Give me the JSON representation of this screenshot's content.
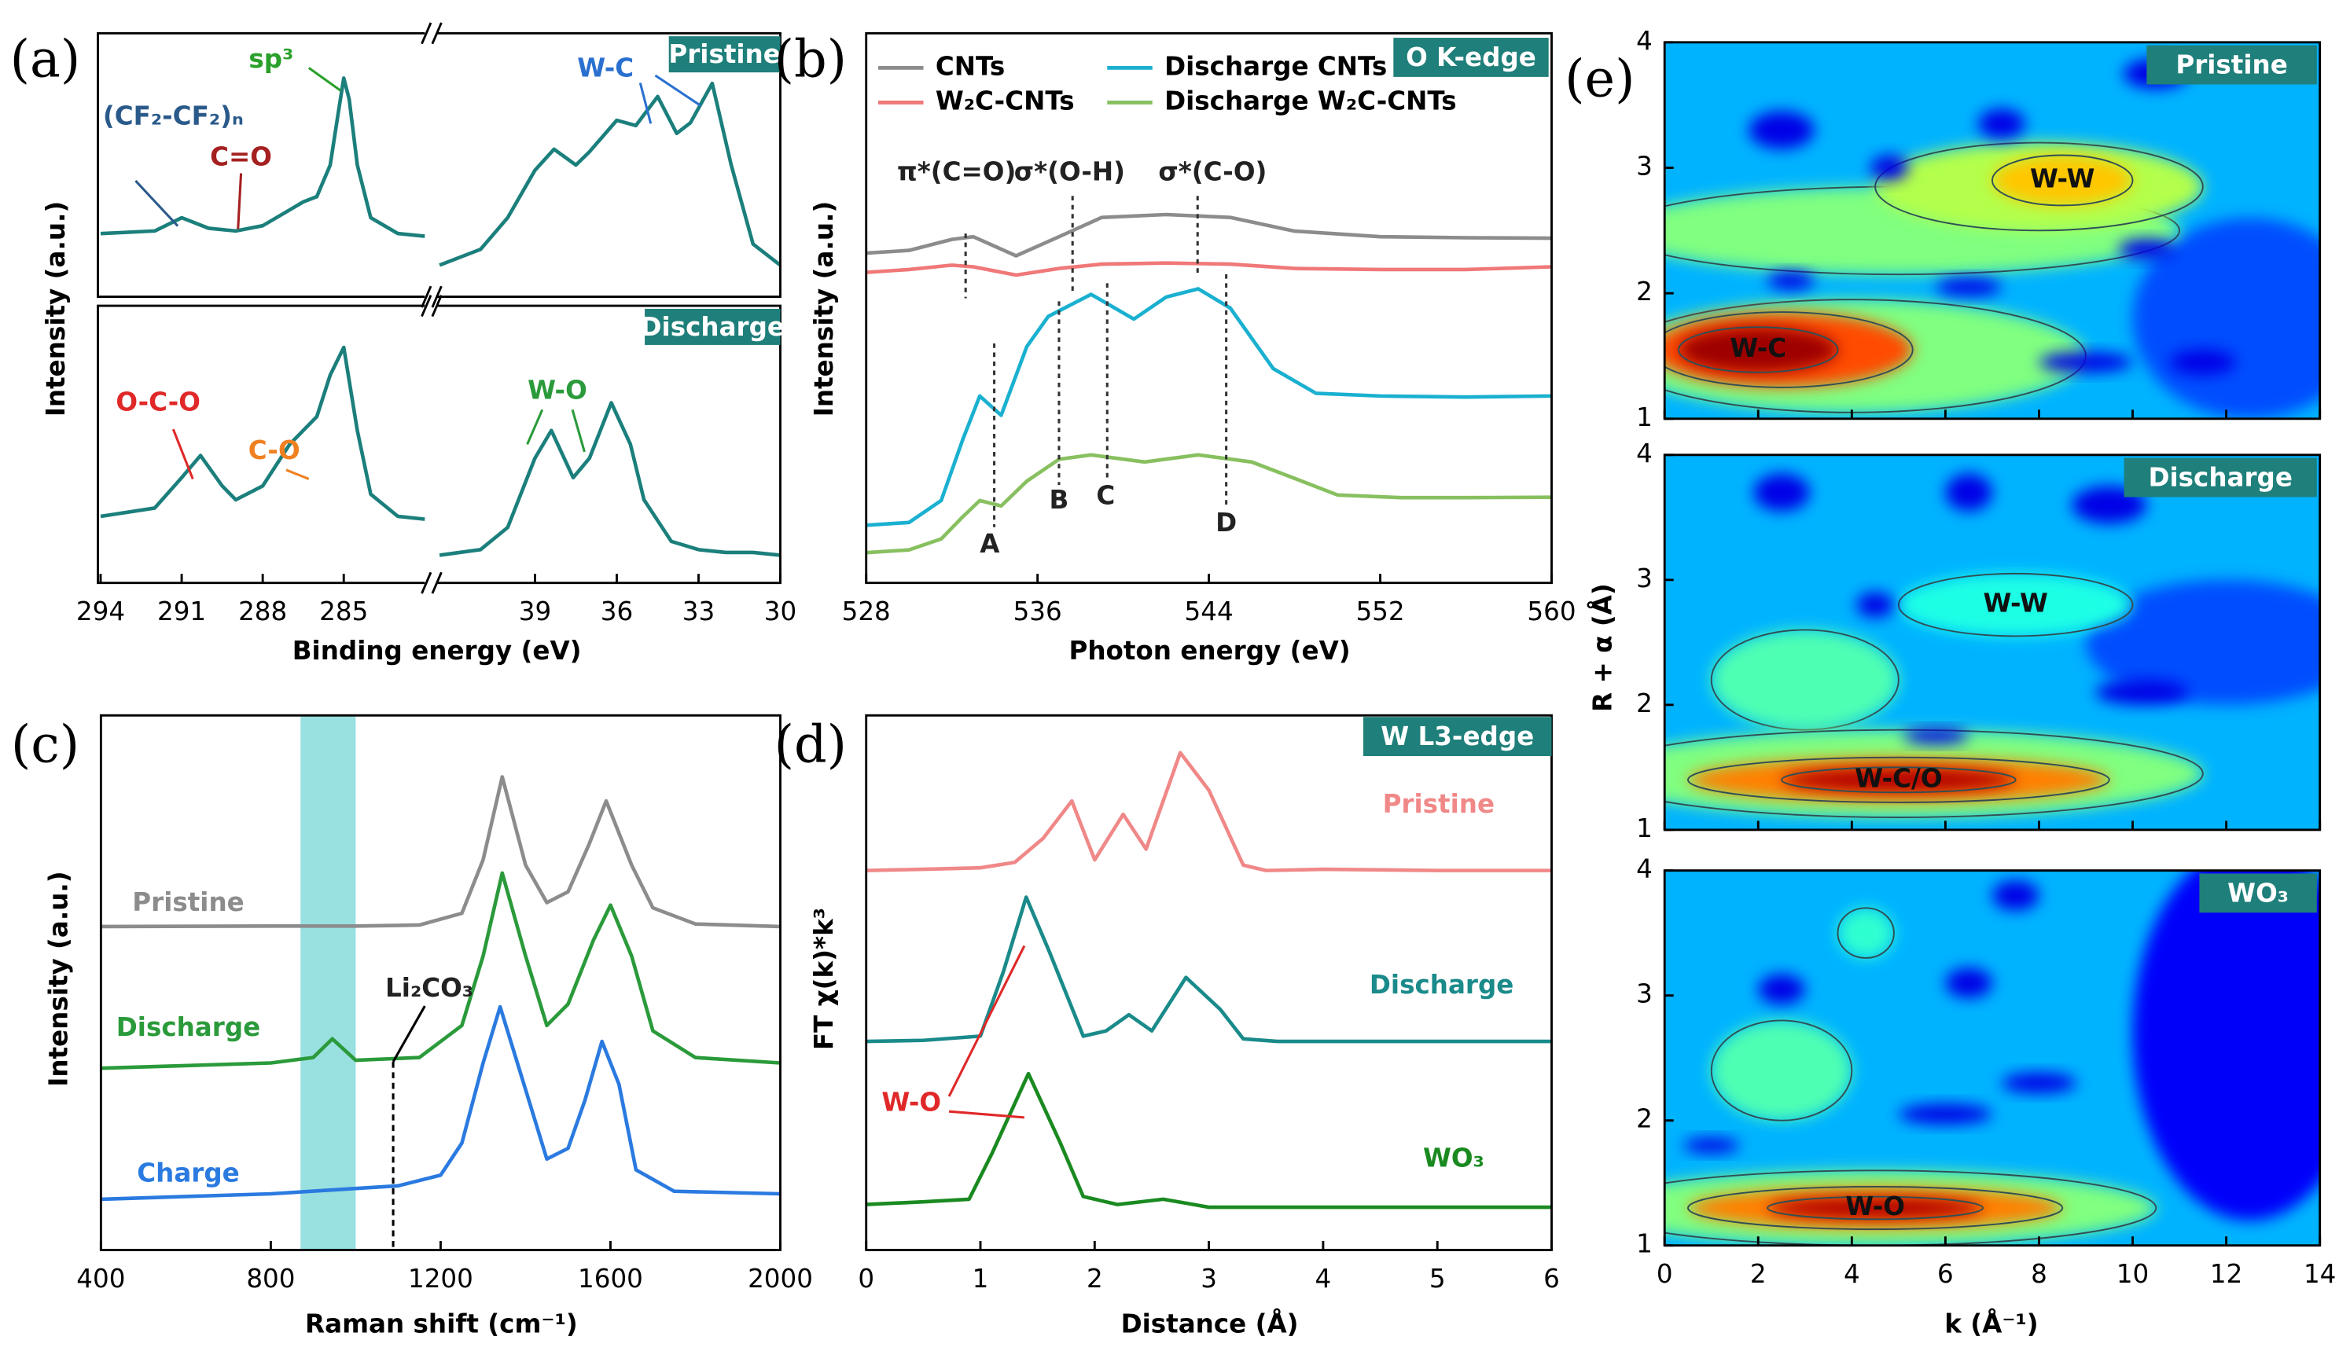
{
  "chart_data": [
    {
      "type": "line",
      "panel_label": "(a)",
      "xlabel": "Binding energy (eV)",
      "ylabel": "Intensity (a.u.)",
      "xlim": [
        294.1,
        282
      ],
      "xticks": [
        294,
        291,
        288,
        285
      ],
      "ylim": [
        0,
        1
      ],
      "annotations": [
        "(CF₂-CF₂)ₙ",
        "sp³",
        "C=O",
        "O-C-O",
        "C-O"
      ],
      "series": [
        {
          "color": "#1b7f7c",
          "x": [
            294,
            292,
            291,
            290,
            289,
            288,
            287,
            286.5,
            286,
            285.5,
            285.2,
            285,
            284.8,
            284.5,
            284,
            283,
            282
          ],
          "values": [
            0.24,
            0.25,
            0.3,
            0.26,
            0.25,
            0.27,
            0.33,
            0.36,
            0.38,
            0.5,
            0.7,
            0.83,
            0.75,
            0.5,
            0.3,
            0.24,
            0.23
          ]
        },
        {
          "color": "#1b7f7c",
          "x": [
            294,
            292,
            291,
            290.3,
            289.5,
            289,
            288,
            287,
            286.5,
            286,
            285.5,
            285,
            284.5,
            284,
            283,
            282
          ],
          "values": [
            0.24,
            0.27,
            0.38,
            0.46,
            0.35,
            0.3,
            0.35,
            0.5,
            0.55,
            0.6,
            0.75,
            0.85,
            0.55,
            0.32,
            0.24,
            0.23
          ]
        }
      ]
    },
    {
      "type": "line",
      "xlim": [
        42.6,
        30
      ],
      "xticks": [
        39,
        36,
        33,
        30
      ],
      "ylim": [
        0,
        1
      ],
      "annotations": [
        "W-C",
        "W-O"
      ],
      "series": [
        {
          "name": "Pristine",
          "color": "#1b7f7c",
          "x": [
            42.5,
            41,
            40,
            39,
            38.3,
            37.5,
            37,
            36,
            35.3,
            34.5,
            33.8,
            33.3,
            32.5,
            31.8,
            31,
            30
          ],
          "values": [
            0.12,
            0.18,
            0.3,
            0.48,
            0.56,
            0.5,
            0.55,
            0.67,
            0.65,
            0.76,
            0.62,
            0.66,
            0.81,
            0.5,
            0.2,
            0.12
          ]
        },
        {
          "name": "Discharge",
          "color": "#1b7f7c",
          "x": [
            42.5,
            41,
            40,
            39,
            38.4,
            37.6,
            37,
            36.2,
            35.5,
            35,
            34,
            33,
            32,
            31,
            30
          ],
          "values": [
            0.1,
            0.12,
            0.2,
            0.45,
            0.55,
            0.38,
            0.45,
            0.65,
            0.5,
            0.3,
            0.15,
            0.12,
            0.11,
            0.11,
            0.1
          ]
        }
      ]
    },
    {
      "type": "line",
      "panel_label": "(b)",
      "xlabel": "Photon energy (eV)",
      "ylabel": "Intensity (a.u.)",
      "tag": "O K-edge",
      "xlim": [
        528,
        560
      ],
      "xticks": [
        528,
        536,
        544,
        552,
        560
      ],
      "ylim": [
        0,
        10
      ],
      "annotations": [
        "π*(C=O)",
        "σ*(O-H)",
        "σ*(C-O)",
        "A",
        "B",
        "C",
        "D"
      ],
      "series": [
        {
          "name": "CNTs",
          "color": "#8c8c8c",
          "x": [
            528,
            530,
            532,
            533,
            535,
            537,
            539,
            542,
            545,
            548,
            552,
            556,
            560
          ],
          "values": [
            6.0,
            6.05,
            6.25,
            6.3,
            5.95,
            6.3,
            6.65,
            6.7,
            6.65,
            6.4,
            6.3,
            6.28,
            6.27
          ]
        },
        {
          "name": "W₂C-CNTs",
          "color": "#f07878",
          "x": [
            528,
            530,
            532,
            533,
            535,
            537,
            539,
            542,
            545,
            548,
            552,
            556,
            560
          ],
          "values": [
            5.65,
            5.7,
            5.78,
            5.75,
            5.6,
            5.72,
            5.8,
            5.82,
            5.8,
            5.72,
            5.7,
            5.7,
            5.75
          ]
        },
        {
          "name": "Discharge CNTs",
          "color": "#1ab0d0",
          "x": [
            528,
            530,
            531.5,
            532.5,
            533.3,
            534.3,
            535.5,
            536.5,
            538.5,
            540.5,
            542,
            543.5,
            545,
            547,
            549,
            552,
            556,
            560
          ],
          "values": [
            1.05,
            1.1,
            1.5,
            2.6,
            3.4,
            3.05,
            4.3,
            4.85,
            5.25,
            4.8,
            5.2,
            5.35,
            5.0,
            3.9,
            3.45,
            3.4,
            3.38,
            3.4
          ]
        },
        {
          "name": "Discharge W₂C-CNTs",
          "color": "#88c060",
          "x": [
            528,
            530,
            531.5,
            532.5,
            533.3,
            534.3,
            535.5,
            537,
            538.5,
            541,
            543.5,
            546,
            548,
            550,
            553,
            556,
            560
          ],
          "values": [
            0.55,
            0.6,
            0.8,
            1.2,
            1.5,
            1.4,
            1.85,
            2.25,
            2.33,
            2.2,
            2.33,
            2.2,
            1.9,
            1.6,
            1.55,
            1.55,
            1.56
          ]
        }
      ]
    },
    {
      "type": "line",
      "panel_label": "(c)",
      "xlabel": "Raman shift (cm⁻¹)",
      "ylabel": "Intensity (a.u.)",
      "xlim": [
        400,
        2000
      ],
      "xticks": [
        400,
        800,
        1200,
        1600,
        2000
      ],
      "ylim": [
        0,
        10
      ],
      "shaded_range": [
        870,
        1000
      ],
      "annotations": [
        "Li₂CO₃"
      ],
      "series": [
        {
          "name": "Pristine",
          "color": "#8c8c8c",
          "x": [
            400,
            800,
            1000,
            1150,
            1250,
            1300,
            1345,
            1400,
            1450,
            1500,
            1550,
            1590,
            1650,
            1700,
            1800,
            2000
          ],
          "values": [
            6.05,
            6.06,
            6.06,
            6.08,
            6.3,
            7.3,
            8.85,
            7.2,
            6.5,
            6.7,
            7.6,
            8.4,
            7.2,
            6.4,
            6.1,
            6.05
          ]
        },
        {
          "name": "Discharge",
          "color": "#2a9a3a",
          "x": [
            400,
            800,
            900,
            945,
            1000,
            1150,
            1250,
            1300,
            1345,
            1400,
            1450,
            1500,
            1560,
            1600,
            1650,
            1700,
            1800,
            2000
          ],
          "values": [
            3.4,
            3.5,
            3.6,
            3.95,
            3.55,
            3.6,
            4.2,
            5.5,
            7.05,
            5.5,
            4.2,
            4.6,
            5.8,
            6.45,
            5.5,
            4.1,
            3.6,
            3.5
          ]
        },
        {
          "name": "Charge",
          "color": "#2a7ae0",
          "x": [
            400,
            800,
            1100,
            1200,
            1250,
            1300,
            1340,
            1400,
            1450,
            1500,
            1540,
            1580,
            1620,
            1660,
            1750,
            2000
          ],
          "values": [
            0.95,
            1.05,
            1.2,
            1.4,
            2.0,
            3.5,
            4.55,
            3.0,
            1.7,
            1.9,
            2.8,
            3.9,
            3.1,
            1.5,
            1.1,
            1.05
          ]
        }
      ]
    },
    {
      "type": "line",
      "panel_label": "(d)",
      "xlabel": "Distance (Å)",
      "ylabel": "FT χ(k)*k³",
      "tag": "W L3-edge",
      "xlim": [
        0,
        6
      ],
      "xticks": [
        0,
        1,
        2,
        3,
        4,
        5,
        6
      ],
      "ylim": [
        0,
        10
      ],
      "annotations": [
        "W-O"
      ],
      "series": [
        {
          "name": "Pristine",
          "color": "#f08888",
          "x": [
            0,
            0.5,
            1,
            1.3,
            1.55,
            1.8,
            2.0,
            2.25,
            2.45,
            2.75,
            3.0,
            3.3,
            3.5,
            4,
            5,
            6
          ],
          "values": [
            7.1,
            7.12,
            7.15,
            7.25,
            7.7,
            8.4,
            7.3,
            8.15,
            7.5,
            9.3,
            8.6,
            7.2,
            7.1,
            7.12,
            7.1,
            7.1
          ]
        },
        {
          "name": "Discharge",
          "color": "#1a8a8a",
          "x": [
            0,
            0.5,
            1,
            1.2,
            1.4,
            1.6,
            1.9,
            2.1,
            2.3,
            2.5,
            2.8,
            3.1,
            3.3,
            3.6,
            4,
            5,
            6
          ],
          "values": [
            3.9,
            3.92,
            4.0,
            5.2,
            6.6,
            5.6,
            4.0,
            4.1,
            4.4,
            4.1,
            5.1,
            4.5,
            3.95,
            3.9,
            3.9,
            3.9,
            3.9
          ]
        },
        {
          "name": "WO₃",
          "color": "#1a8a20",
          "x": [
            0,
            0.5,
            0.9,
            1.1,
            1.42,
            1.7,
            1.9,
            2.2,
            2.6,
            3,
            4,
            5,
            6
          ],
          "values": [
            0.85,
            0.9,
            0.95,
            1.8,
            3.3,
            2.0,
            1.0,
            0.85,
            0.95,
            0.8,
            0.8,
            0.8,
            0.8
          ]
        }
      ]
    },
    {
      "type": "heatmap",
      "panel_label": "(e)",
      "tag": "Pristine",
      "xlim": [
        0,
        14
      ],
      "xticks": [
        0,
        2,
        4,
        6,
        8,
        10,
        12,
        14
      ],
      "ylim": [
        1,
        4
      ],
      "yticks": [
        1,
        2,
        3,
        4
      ],
      "background": 0.3,
      "blobs": [
        {
          "x": 12.5,
          "y": 1.8,
          "rx": 2.5,
          "ry": 0.8,
          "level": 0.2
        },
        {
          "x": 5,
          "y": 2.5,
          "rx": 6,
          "ry": 0.35,
          "level": 0.5
        },
        {
          "x": 8,
          "y": 2.85,
          "rx": 3.5,
          "ry": 0.35,
          "level": 0.55
        },
        {
          "x": 8.5,
          "y": 2.9,
          "rx": 1.5,
          "ry": 0.2,
          "level": 0.68,
          "label": "W-W"
        },
        {
          "x": 4,
          "y": 1.5,
          "rx": 5,
          "ry": 0.45,
          "level": 0.5
        },
        {
          "x": 2.5,
          "y": 1.55,
          "rx": 2.8,
          "ry": 0.3,
          "level": 0.8
        },
        {
          "x": 2,
          "y": 1.55,
          "rx": 1.7,
          "ry": 0.18,
          "level": 0.97,
          "label": "W-C"
        },
        {
          "x": 2.5,
          "y": 3.3,
          "rx": 0.7,
          "ry": 0.15,
          "level": 0.1
        },
        {
          "x": 4.8,
          "y": 3.0,
          "rx": 0.4,
          "ry": 0.1,
          "level": 0.1
        },
        {
          "x": 7.2,
          "y": 3.35,
          "rx": 0.5,
          "ry": 0.12,
          "level": 0.1
        },
        {
          "x": 10.5,
          "y": 3.75,
          "rx": 0.7,
          "ry": 0.12,
          "level": 0.1
        },
        {
          "x": 10.3,
          "y": 2.35,
          "rx": 0.6,
          "ry": 0.08,
          "level": 0.1
        },
        {
          "x": 2.7,
          "y": 2.1,
          "rx": 0.5,
          "ry": 0.07,
          "level": 0.1
        },
        {
          "x": 6.5,
          "y": 2.05,
          "rx": 0.7,
          "ry": 0.07,
          "level": 0.1
        },
        {
          "x": 9,
          "y": 1.45,
          "rx": 1,
          "ry": 0.08,
          "level": 0.1
        },
        {
          "x": 11.5,
          "y": 1.45,
          "rx": 0.7,
          "ry": 0.1,
          "level": 0.1
        }
      ]
    },
    {
      "type": "heatmap",
      "ylabel": "R + α (Å)",
      "tag": "Discharge",
      "xlim": [
        0,
        14
      ],
      "xticks": [
        0,
        2,
        4,
        6,
        8,
        10,
        12,
        14
      ],
      "ylim": [
        1,
        4
      ],
      "yticks": [
        1,
        2,
        3,
        4
      ],
      "background": 0.3,
      "blobs": [
        {
          "x": 12,
          "y": 2.5,
          "rx": 3,
          "ry": 0.5,
          "level": 0.2
        },
        {
          "x": 3,
          "y": 2.2,
          "rx": 2,
          "ry": 0.4,
          "level": 0.45
        },
        {
          "x": 7.5,
          "y": 2.8,
          "rx": 2.5,
          "ry": 0.25,
          "level": 0.4,
          "label": "W-W"
        },
        {
          "x": 5,
          "y": 1.45,
          "rx": 6.5,
          "ry": 0.35,
          "level": 0.5
        },
        {
          "x": 5,
          "y": 1.4,
          "rx": 4.5,
          "ry": 0.18,
          "level": 0.75
        },
        {
          "x": 5,
          "y": 1.4,
          "rx": 2.5,
          "ry": 0.1,
          "level": 0.95,
          "label": "W-C/O"
        },
        {
          "x": 2.5,
          "y": 3.7,
          "rx": 0.6,
          "ry": 0.15,
          "level": 0.1
        },
        {
          "x": 6.5,
          "y": 3.7,
          "rx": 0.5,
          "ry": 0.15,
          "level": 0.1
        },
        {
          "x": 9.5,
          "y": 3.6,
          "rx": 0.8,
          "ry": 0.15,
          "level": 0.1
        },
        {
          "x": 4.5,
          "y": 2.8,
          "rx": 0.4,
          "ry": 0.1,
          "level": 0.1
        },
        {
          "x": 10.2,
          "y": 2.1,
          "rx": 1,
          "ry": 0.1,
          "level": 0.1
        },
        {
          "x": 5.8,
          "y": 1.75,
          "rx": 0.7,
          "ry": 0.06,
          "level": 0.1
        }
      ]
    },
    {
      "type": "heatmap",
      "xlabel": "k (Å⁻¹)",
      "tag": "WO₃",
      "xlim": [
        0,
        14
      ],
      "xticks": [
        0,
        2,
        4,
        6,
        8,
        10,
        12,
        14
      ],
      "ylim": [
        1,
        4
      ],
      "yticks": [
        1,
        2,
        3,
        4
      ],
      "background": 0.3,
      "blobs": [
        {
          "x": 12.5,
          "y": 2.7,
          "rx": 2.5,
          "ry": 1.5,
          "level": 0.12
        },
        {
          "x": 2.5,
          "y": 2.4,
          "rx": 1.5,
          "ry": 0.4,
          "level": 0.45
        },
        {
          "x": 4.5,
          "y": 1.3,
          "rx": 6,
          "ry": 0.3,
          "level": 0.5
        },
        {
          "x": 4.5,
          "y": 1.3,
          "rx": 4,
          "ry": 0.17,
          "level": 0.75
        },
        {
          "x": 4.5,
          "y": 1.3,
          "rx": 2.3,
          "ry": 0.09,
          "level": 0.95,
          "label": "W-O"
        },
        {
          "x": 4.3,
          "y": 3.5,
          "rx": 0.6,
          "ry": 0.2,
          "level": 0.42
        },
        {
          "x": 2.5,
          "y": 3.05,
          "rx": 0.5,
          "ry": 0.12,
          "level": 0.1
        },
        {
          "x": 6.5,
          "y": 3.1,
          "rx": 0.5,
          "ry": 0.12,
          "level": 0.1
        },
        {
          "x": 7.5,
          "y": 3.8,
          "rx": 0.5,
          "ry": 0.12,
          "level": 0.1
        },
        {
          "x": 8,
          "y": 2.3,
          "rx": 0.8,
          "ry": 0.08,
          "level": 0.1
        },
        {
          "x": 1,
          "y": 1.8,
          "rx": 0.6,
          "ry": 0.06,
          "level": 0.1
        },
        {
          "x": 6,
          "y": 2.05,
          "rx": 1,
          "ry": 0.08,
          "level": 0.1
        }
      ]
    }
  ]
}
